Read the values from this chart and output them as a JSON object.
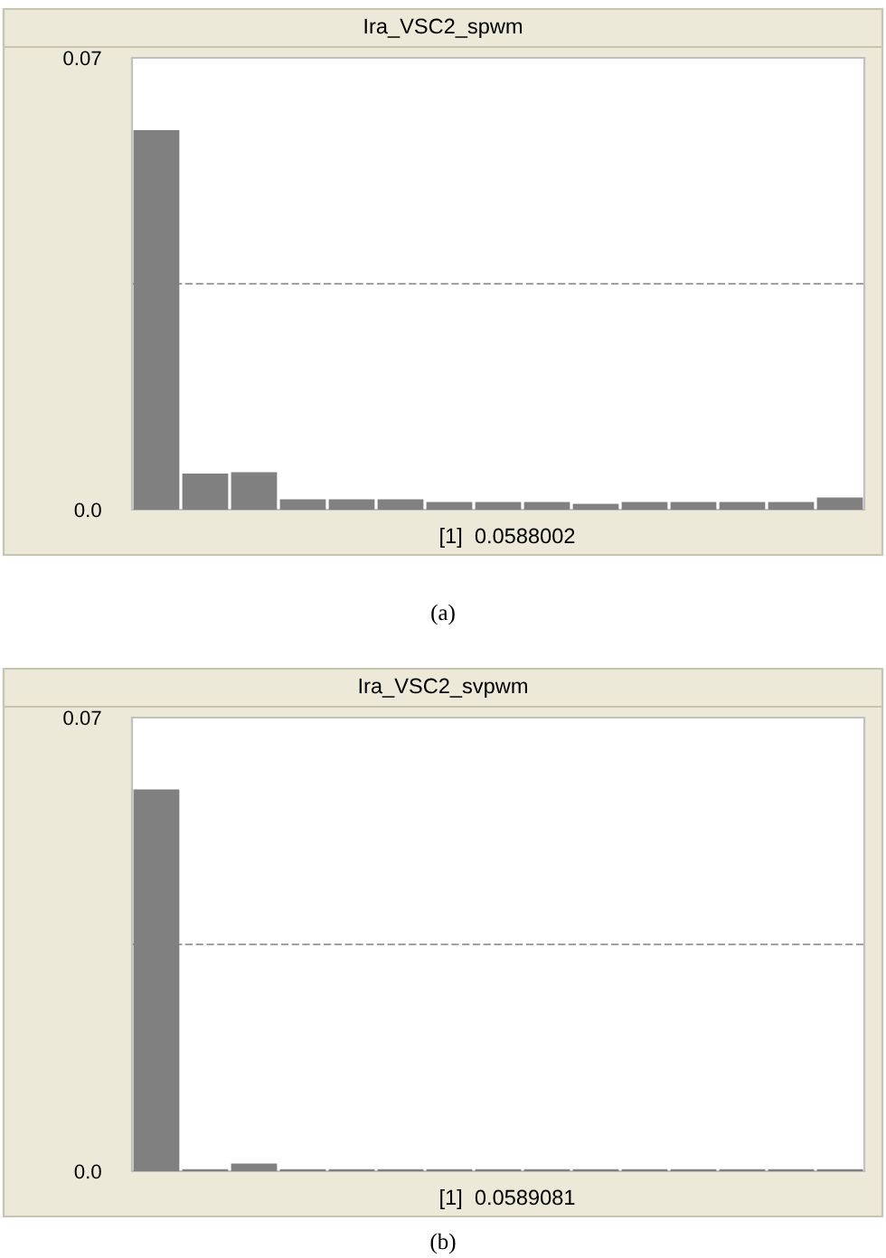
{
  "chart_data": [
    {
      "type": "bar",
      "title": "Ira_VSC2_spwm",
      "categories": [
        null,
        null,
        null,
        null,
        null,
        null,
        null,
        null,
        null,
        null,
        null,
        null,
        null,
        null,
        null
      ],
      "values": [
        0.0588,
        0.0056,
        0.0058,
        0.0016,
        0.0016,
        0.0016,
        0.0012,
        0.0012,
        0.0012,
        0.0009,
        0.0012,
        0.0012,
        0.0012,
        0.0012,
        0.0019
      ],
      "color": "#808080",
      "ylim": [
        0,
        0.07
      ],
      "yticks": [
        {
          "value": 0,
          "label": "0.0"
        },
        0.07
      ],
      "tick_labels": "y",
      "ref_lines": [
        {
          "axis": "y",
          "value": 0.035,
          "color": "#a0a0a0",
          "line_style": "dashed"
        }
      ],
      "annotations": [
        "[1]  0.0588002",
        "(a)"
      ]
    },
    {
      "type": "bar",
      "title": "Ira_VSC2_svpwm",
      "categories": [
        null,
        null,
        null,
        null,
        null,
        null,
        null,
        null,
        null,
        null,
        null,
        null,
        null,
        null,
        null
      ],
      "values": [
        0.0589081,
        0.0003,
        0.0012,
        0.0003,
        0.0003,
        0.0003,
        0.0003,
        0.0003,
        0.0003,
        0.0003,
        0.0003,
        0.0003,
        0.0003,
        0.0003,
        0.0003
      ],
      "color": "#808080",
      "ylim": [
        0,
        0.07
      ],
      "yticks": [
        {
          "value": 0,
          "label": "0.0"
        },
        0.07
      ],
      "tick_labels": "y",
      "ref_lines": [
        {
          "axis": "y",
          "value": 0.035,
          "color": "#a0a0a0",
          "line_style": "dashed"
        }
      ],
      "annotations": [
        "[1]  0.0589081",
        "(b)"
      ]
    }
  ]
}
